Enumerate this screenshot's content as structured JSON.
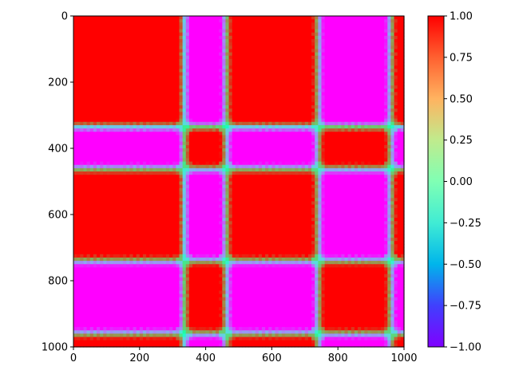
{
  "chart_data": {
    "type": "heatmap",
    "title": "",
    "xlabel": "",
    "ylabel": "",
    "colormap": "rainbow",
    "xlim": [
      0,
      1000
    ],
    "ylim": [
      1000,
      0
    ],
    "x_ticks": [
      0,
      200,
      400,
      600,
      800,
      1000
    ],
    "y_ticks": [
      0,
      200,
      400,
      600,
      800,
      1000
    ],
    "x_tick_labels": [
      "0",
      "200",
      "400",
      "600",
      "800",
      "1000"
    ],
    "y_tick_labels": [
      "0",
      "200",
      "400",
      "600",
      "800",
      "1000"
    ],
    "color_range": [
      -1.0,
      1.0
    ],
    "colorbar": {
      "ticks": [
        1.0,
        0.75,
        0.5,
        0.25,
        0.0,
        -0.25,
        -0.5,
        -0.75,
        -1.0
      ],
      "tick_labels": [
        "1.00",
        "0.75",
        "0.50",
        "0.25",
        "0.00",
        "−0.25",
        "−0.50",
        "−0.75",
        "−1.00"
      ]
    },
    "block_boundaries": [
      0,
      335,
      462,
      740,
      960,
      1000
    ],
    "block_phases": [
      -1,
      1,
      -1,
      1,
      -1
    ],
    "description_values": {
      "within_block_correlation": 1.0,
      "cross_block_correlation": 1.0,
      "boundary_correlation": -1.0
    }
  }
}
